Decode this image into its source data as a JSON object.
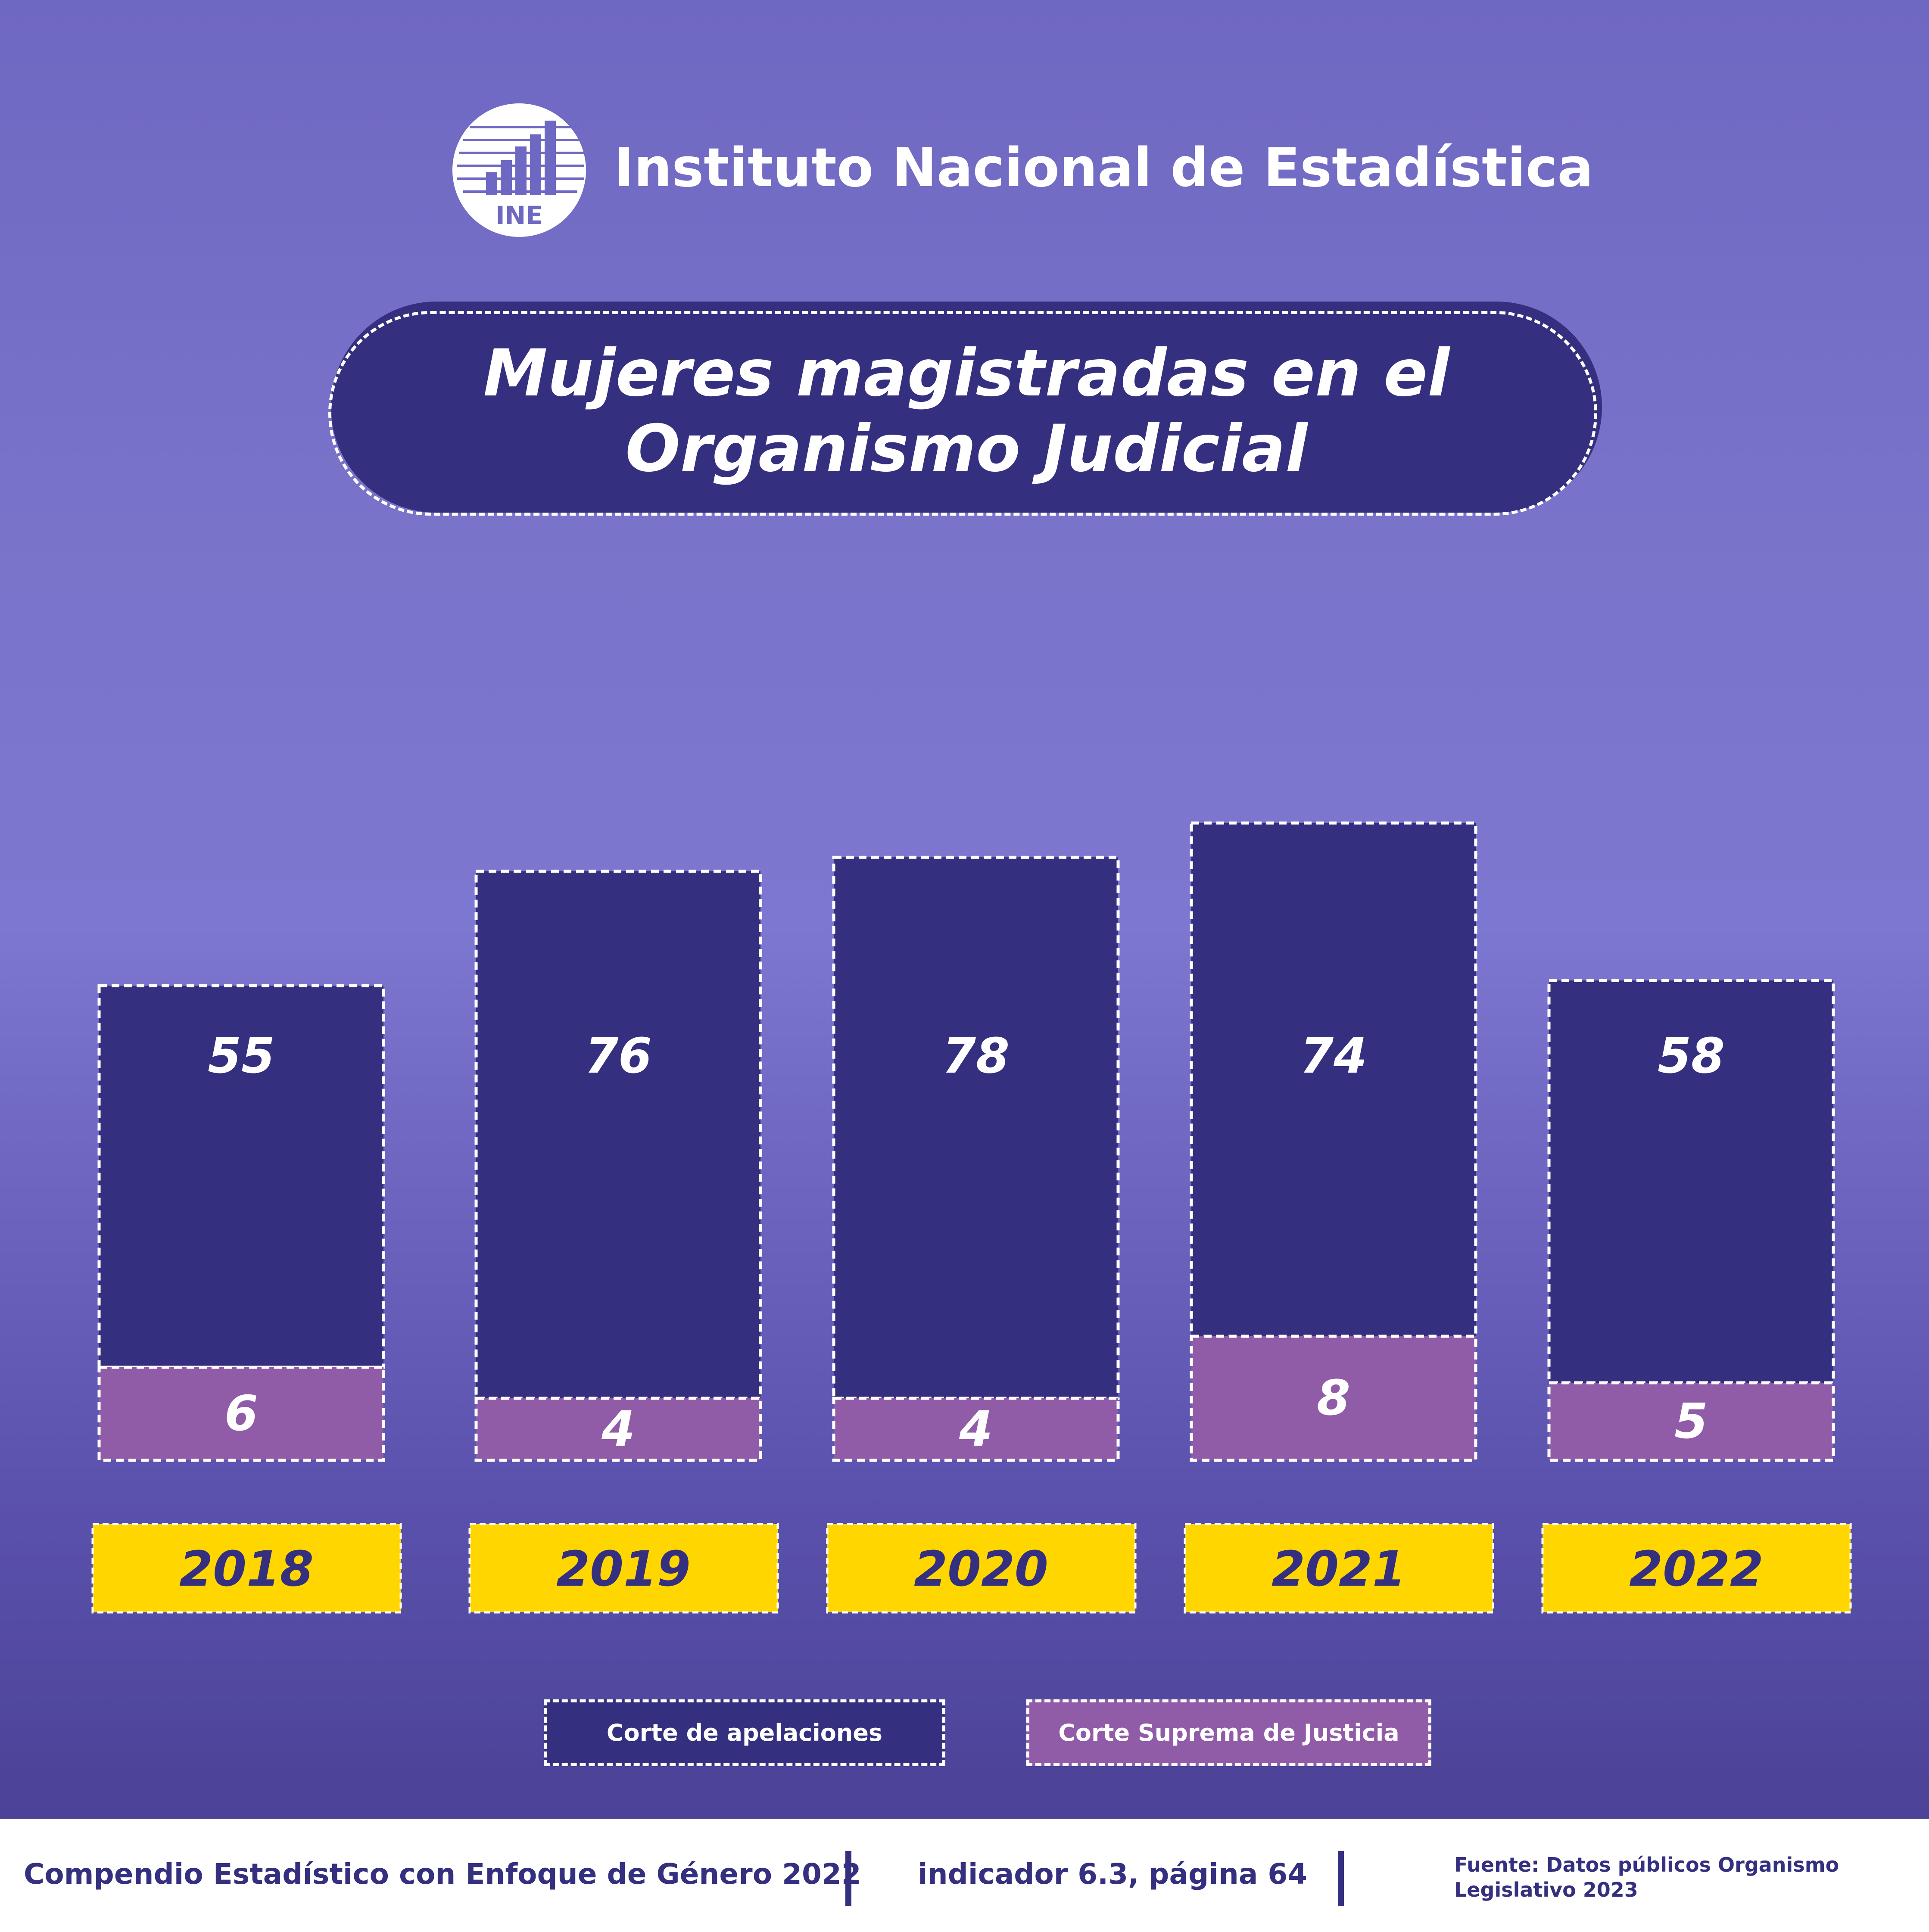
{
  "header": {
    "org_name": "Instituto Nacional de Estadística",
    "logo_text": "INE"
  },
  "title": {
    "line1": "Mujeres magistradas en el",
    "line2": "Organismo Judicial"
  },
  "legend": {
    "apelaciones": "Corte de apelaciones",
    "suprema": "Corte Suprema de Justicia"
  },
  "footer": {
    "compendio": "Compendio Estadístico con Enfoque de Género 2022",
    "indicador": "indicador 6.3, página 64",
    "fuente": "Fuente: Datos públicos Organismo Legislativo 2023"
  },
  "colors": {
    "apelaciones": "#34307f",
    "suprema": "#905ca8",
    "year_tag": "#ffd600",
    "year_text": "#34307f"
  },
  "chart_data": {
    "type": "bar",
    "stacked": true,
    "categories": [
      "2018",
      "2019",
      "2020",
      "2021",
      "2022"
    ],
    "series": [
      {
        "name": "Corte Suprema de Justicia",
        "values": [
          6,
          4,
          4,
          8,
          5
        ]
      },
      {
        "name": "Corte de apelaciones",
        "values": [
          55,
          76,
          78,
          74,
          58
        ]
      }
    ],
    "title": "Mujeres magistradas en el Organismo Judicial",
    "grid": false,
    "legend_position": "bottom"
  }
}
